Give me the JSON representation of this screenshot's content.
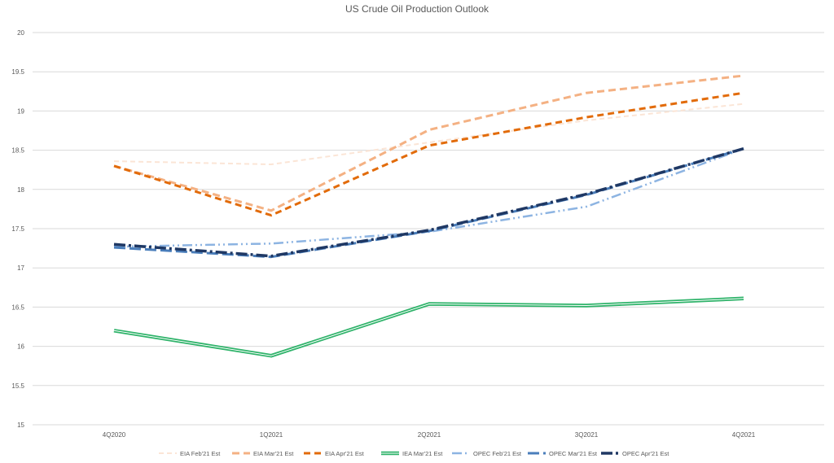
{
  "chart_data": {
    "type": "line",
    "title": "US Crude Oil Production Outlook",
    "xlabel": "",
    "ylabel": "",
    "categories": [
      "4Q2020",
      "1Q2021",
      "2Q2021",
      "3Q2021",
      "4Q2021"
    ],
    "ylim": [
      15,
      20
    ],
    "yticks": [
      15,
      15.5,
      16,
      16.5,
      17,
      17.5,
      18,
      18.5,
      19,
      19.5,
      20
    ],
    "grid": true,
    "legend_position": "bottom",
    "series": [
      {
        "name": "EIA Feb'21 Est",
        "values": [
          18.36,
          18.32,
          18.6,
          18.88,
          19.09
        ],
        "color": "#fbe5d6",
        "dash": "6,4",
        "width": 2
      },
      {
        "name": "EIA Mar'21 Est",
        "values": [
          18.3,
          17.73,
          18.76,
          19.23,
          19.45
        ],
        "color": "#f4b183",
        "dash": "9,5",
        "width": 3
      },
      {
        "name": "EIA Apr'21 Est",
        "values": [
          18.3,
          17.67,
          18.56,
          18.92,
          19.23
        ],
        "color": "#e26b0a",
        "dash": "8,5",
        "width": 3
      },
      {
        "name": "IEA Mar'21 Est",
        "values": [
          16.2,
          15.88,
          16.54,
          16.52,
          16.61
        ],
        "color": "#2fb36a",
        "dash": "",
        "width": 3,
        "double": true
      },
      {
        "name": "OPEC Feb'21 Est",
        "values": [
          17.27,
          17.31,
          17.46,
          17.78,
          18.52
        ],
        "color": "#8db4e2",
        "dash": "12,4,2,4,2,4",
        "width": 2.5
      },
      {
        "name": "OPEC Mar'21 Est",
        "values": [
          17.26,
          17.14,
          17.47,
          17.93,
          18.52
        ],
        "color": "#4a7ebb",
        "dash": "14,5",
        "width": 3
      },
      {
        "name": "OPEC Apr'21 Est",
        "values": [
          17.3,
          17.15,
          17.48,
          17.94,
          18.52
        ],
        "color": "#1f3864",
        "dash": "14,4,3,4",
        "width": 3.5
      }
    ]
  }
}
